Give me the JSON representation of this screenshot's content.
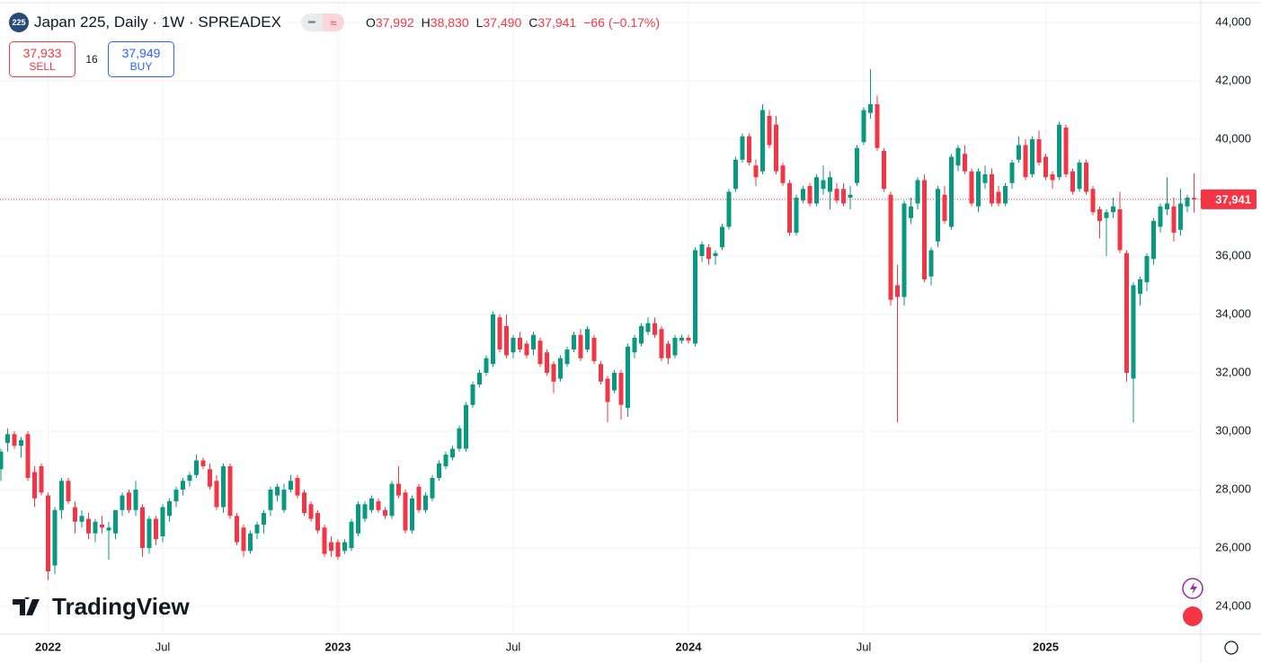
{
  "header": {
    "icon": "225",
    "title": "Japan 225, Daily · 1W · SPREADEX",
    "ohlc": [
      {
        "key": "O",
        "text": "37,992"
      },
      {
        "key": "H",
        "text": "38,830"
      },
      {
        "key": "L",
        "text": "37,490"
      },
      {
        "key": "C",
        "text": "37,941"
      }
    ],
    "change": "−66 (−0.17%)"
  },
  "trade": {
    "sell_price": "37,933",
    "sell_label": "SELL",
    "spread": "16",
    "buy_price": "37,949",
    "buy_label": "BUY"
  },
  "logo": "TradingView",
  "chart_data": {
    "type": "candlestick",
    "up_color": "#089981",
    "down_color": "#f23645",
    "grid": true,
    "ylim": [
      24000,
      44000
    ],
    "yticks": [
      {
        "value": 24000,
        "label": "24,000"
      },
      {
        "value": 26000,
        "label": "26,000"
      },
      {
        "value": 28000,
        "label": "28,000"
      },
      {
        "value": 30000,
        "label": "30,000"
      },
      {
        "value": 32000,
        "label": "32,000"
      },
      {
        "value": 34000,
        "label": "34,000"
      },
      {
        "value": 36000,
        "label": "36,000"
      },
      {
        "value": 38000,
        "label": "38,000"
      },
      {
        "value": 40000,
        "label": "40,000"
      },
      {
        "value": 42000,
        "label": "42,000"
      },
      {
        "value": 44000,
        "label": "44,000"
      }
    ],
    "last_price": {
      "value": 37941,
      "label": "37,941"
    },
    "categories": [
      null,
      null,
      null,
      null,
      null,
      null,
      null,
      "2022",
      null,
      null,
      null,
      null,
      null,
      null,
      null,
      null,
      null,
      null,
      null,
      null,
      null,
      null,
      null,
      null,
      "Jul",
      null,
      null,
      null,
      null,
      null,
      null,
      null,
      null,
      null,
      null,
      null,
      null,
      null,
      null,
      null,
      null,
      null,
      null,
      null,
      null,
      null,
      null,
      null,
      null,
      null,
      "2023",
      null,
      null,
      null,
      null,
      null,
      null,
      null,
      null,
      null,
      null,
      null,
      null,
      null,
      null,
      null,
      null,
      null,
      null,
      null,
      null,
      null,
      null,
      null,
      null,
      null,
      "Jul",
      null,
      null,
      null,
      null,
      null,
      null,
      null,
      null,
      null,
      null,
      null,
      null,
      null,
      null,
      null,
      null,
      null,
      null,
      null,
      null,
      null,
      null,
      null,
      null,
      null,
      "2024",
      null,
      null,
      null,
      null,
      null,
      null,
      null,
      null,
      null,
      null,
      null,
      null,
      null,
      null,
      null,
      null,
      null,
      null,
      null,
      null,
      null,
      null,
      null,
      null,
      null,
      "Jul",
      null,
      null,
      null,
      null,
      null,
      null,
      null,
      null,
      null,
      null,
      null,
      null,
      null,
      null,
      null,
      null,
      null,
      null,
      null,
      null,
      null,
      null,
      null,
      null,
      null,
      null,
      "2025",
      null,
      null,
      null,
      null,
      null,
      null,
      null,
      null,
      null,
      null,
      null,
      null,
      null,
      null,
      null,
      null,
      null,
      null,
      null,
      null,
      null,
      null
    ],
    "open": [
      28700,
      29600,
      29900,
      29500,
      29900,
      28600,
      28800,
      27800,
      25400,
      27300,
      28300,
      27400,
      26900,
      27000,
      26500,
      26800,
      26600,
      26500,
      27300,
      27900,
      27300,
      27400,
      26000,
      27000,
      26400,
      27100,
      27600,
      28000,
      28300,
      28500,
      29000,
      28700,
      28300,
      27400,
      28800,
      27100,
      26700,
      25900,
      26500,
      26800,
      27300,
      27800,
      27300,
      28000,
      28400,
      27900,
      27500,
      27200,
      26700,
      26200,
      26200,
      25900,
      26000,
      26500,
      27000,
      27300,
      27600,
      27300,
      27100,
      28200,
      27900,
      26600,
      28100,
      27300,
      27700,
      28400,
      28800,
      29100,
      29400,
      29400,
      30900,
      31600,
      32000,
      32300,
      33900,
      33600,
      32700,
      33200,
      33000,
      32800,
      33100,
      32700,
      32300,
      31800,
      32300,
      32800,
      33300,
      32800,
      33200,
      32300,
      31800,
      31400,
      32000,
      30800,
      32700,
      33000,
      33400,
      33700,
      33500,
      33000,
      32600,
      33100,
      33200,
      33000,
      36000,
      36300,
      36000,
      36300,
      37000,
      38300,
      39300,
      40100,
      39100,
      38900,
      40800,
      40500,
      39100,
      38500,
      36800,
      37900,
      38400,
      37800,
      38300,
      38200,
      38300,
      38300,
      38000,
      38500,
      39900,
      40900,
      41200,
      39600,
      38100,
      35000,
      34600,
      37300,
      37800,
      38600,
      35300,
      36500,
      38100,
      37000,
      39100,
      39500,
      38900,
      37700,
      38500,
      38800,
      38200,
      37800,
      38500,
      39300,
      39800,
      38800,
      40000,
      39400,
      38800,
      38700,
      40400,
      38900,
      38300,
      39200,
      38300,
      37600,
      37300,
      37500,
      37600,
      36100,
      31800,
      34700,
      35100,
      35900,
      37000,
      37600,
      37700,
      36900,
      37700,
      37992
    ],
    "high": [
      29400,
      30100,
      30000,
      29800,
      30000,
      28800,
      28900,
      27900,
      27400,
      28400,
      28400,
      27600,
      27300,
      27200,
      27000,
      27100,
      26900,
      27300,
      27900,
      28000,
      28300,
      27500,
      27100,
      27100,
      27500,
      27700,
      28100,
      28400,
      28600,
      29200,
      29100,
      28900,
      28500,
      28900,
      28900,
      27200,
      26800,
      26600,
      26900,
      27300,
      28100,
      28200,
      28200,
      28500,
      28500,
      28000,
      27600,
      27300,
      26800,
      26400,
      26300,
      26300,
      27000,
      27600,
      27600,
      27800,
      27700,
      27400,
      28300,
      28800,
      28000,
      27800,
      28200,
      27900,
      28500,
      29000,
      29300,
      29500,
      30200,
      31000,
      31700,
      32100,
      32600,
      34100,
      34000,
      34000,
      33300,
      33400,
      33100,
      33400,
      33200,
      32800,
      32400,
      32600,
      32900,
      33400,
      33500,
      33600,
      33300,
      32400,
      31900,
      32100,
      32100,
      33000,
      33300,
      33700,
      33900,
      33900,
      33600,
      33100,
      33300,
      33300,
      33300,
      36300,
      36500,
      36400,
      36200,
      37100,
      38300,
      39400,
      40200,
      40200,
      39300,
      41200,
      41000,
      40800,
      39200,
      38600,
      38100,
      38400,
      38500,
      38800,
      39100,
      38900,
      38500,
      38500,
      38400,
      39800,
      41100,
      42400,
      41500,
      39700,
      38200,
      35700,
      37900,
      38000,
      38700,
      38800,
      36300,
      38400,
      38400,
      39500,
      39800,
      39800,
      39000,
      39000,
      39100,
      39000,
      38400,
      38500,
      39300,
      40100,
      40000,
      40100,
      40300,
      39500,
      38900,
      40600,
      40500,
      39000,
      39300,
      39300,
      38400,
      37700,
      37600,
      38000,
      38200,
      36200,
      35100,
      35300,
      36100,
      37300,
      37800,
      38700,
      38000,
      38300,
      38100,
      38830
    ],
    "low": [
      28300,
      29300,
      29400,
      29100,
      28300,
      27400,
      27800,
      24900,
      25100,
      27000,
      27500,
      26500,
      26700,
      26300,
      26200,
      26500,
      25600,
      26300,
      27100,
      27200,
      27100,
      25700,
      25800,
      26100,
      26200,
      26900,
      27400,
      27800,
      28100,
      28400,
      28700,
      28000,
      27300,
      27200,
      27000,
      26100,
      25700,
      25800,
      26300,
      26500,
      27100,
      27600,
      27200,
      27900,
      27700,
      27100,
      26900,
      26500,
      25700,
      25700,
      25600,
      25800,
      25900,
      26400,
      26900,
      27200,
      27200,
      27000,
      27000,
      27700,
      26500,
      26500,
      27200,
      27200,
      27600,
      28300,
      28700,
      29000,
      29300,
      29300,
      30800,
      31500,
      31900,
      32200,
      32700,
      32500,
      32500,
      32700,
      32500,
      32600,
      32200,
      31900,
      31300,
      31700,
      32200,
      32700,
      32400,
      32700,
      32300,
      31600,
      30300,
      31300,
      30400,
      30500,
      32500,
      32900,
      33300,
      33200,
      32400,
      32300,
      32500,
      33000,
      33000,
      32900,
      35800,
      35700,
      35700,
      36200,
      36900,
      38200,
      39200,
      39100,
      38400,
      38800,
      39700,
      38800,
      38400,
      36700,
      36700,
      37800,
      37700,
      37700,
      38100,
      37600,
      37800,
      37700,
      37600,
      38400,
      39800,
      40700,
      39600,
      38200,
      34300,
      30300,
      34300,
      37100,
      37600,
      35100,
      35000,
      36300,
      37100,
      36900,
      38900,
      38800,
      37700,
      37500,
      38300,
      37700,
      37700,
      37700,
      38300,
      39200,
      38600,
      38700,
      39100,
      38600,
      38300,
      38600,
      38700,
      38100,
      38200,
      38100,
      37400,
      36600,
      36000,
      37300,
      36100,
      31700,
      30300,
      34300,
      34800,
      35700,
      36800,
      37400,
      36500,
      36700,
      37500,
      37490
    ],
    "close": [
      29300,
      29900,
      29500,
      29700,
      28400,
      27700,
      27900,
      25200,
      27300,
      28300,
      27600,
      26900,
      27100,
      26500,
      26900,
      26700,
      26700,
      27300,
      27800,
      27300,
      28000,
      26000,
      27000,
      26300,
      27400,
      27600,
      28000,
      28300,
      28500,
      29000,
      28800,
      28100,
      27400,
      28800,
      27100,
      26200,
      25900,
      26500,
      26800,
      27200,
      28000,
      28100,
      28000,
      28300,
      27800,
      27200,
      27000,
      26600,
      25800,
      25900,
      25700,
      26200,
      26900,
      27500,
      27500,
      27700,
      27300,
      27100,
      28200,
      27800,
      26600,
      27700,
      27300,
      27800,
      28400,
      28900,
      29200,
      29400,
      30100,
      30900,
      31600,
      32000,
      32500,
      34000,
      32800,
      32600,
      33200,
      32800,
      32600,
      33300,
      32300,
      32000,
      31700,
      32500,
      32800,
      33300,
      32500,
      33500,
      32400,
      31700,
      31000,
      32000,
      30900,
      32900,
      33200,
      33600,
      33700,
      33300,
      32500,
      32500,
      33200,
      33200,
      33100,
      36200,
      36400,
      35900,
      36100,
      37000,
      38200,
      39300,
      40100,
      39200,
      38700,
      41000,
      39800,
      38900,
      38500,
      36800,
      38000,
      38300,
      37800,
      38700,
      38600,
      38700,
      37900,
      37800,
      38100,
      39700,
      41000,
      41200,
      39700,
      38300,
      34500,
      34600,
      37800,
      37700,
      38600,
      35200,
      36200,
      38300,
      37200,
      39400,
      39700,
      38900,
      37800,
      38900,
      38800,
      37800,
      37800,
      38400,
      39200,
      39800,
      38700,
      40000,
      39200,
      38700,
      38600,
      40500,
      38800,
      38200,
      39200,
      38200,
      37500,
      37200,
      37500,
      37700,
      36200,
      32000,
      35000,
      35200,
      36000,
      37200,
      37700,
      37800,
      36800,
      37800,
      38000,
      37941
    ]
  }
}
